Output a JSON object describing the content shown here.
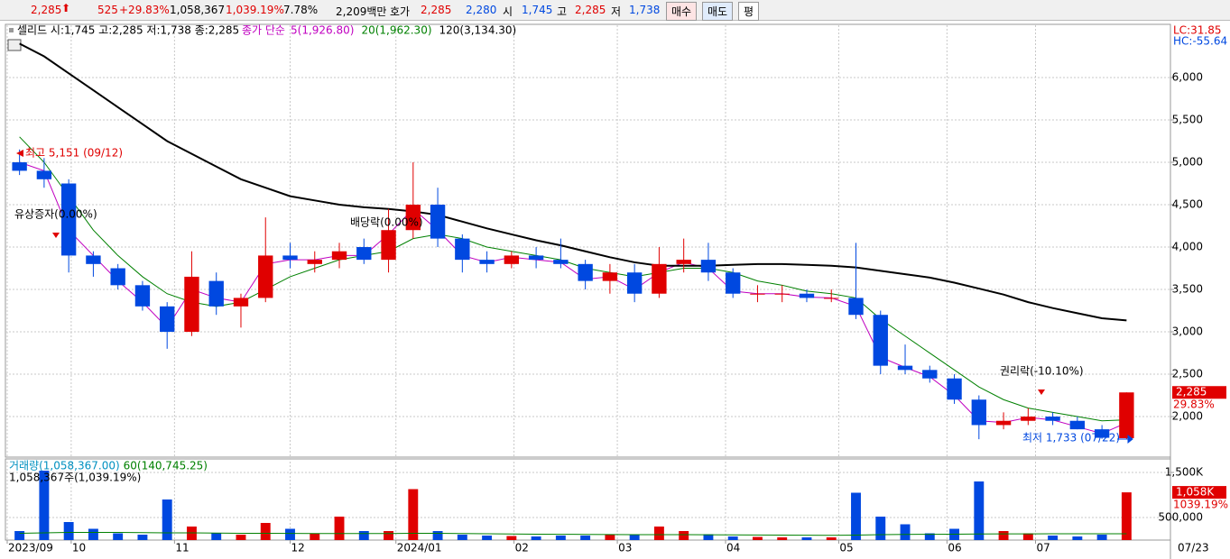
{
  "toolbar": {
    "price": "2,285",
    "change": "525",
    "change_rate": "+29.83%",
    "volume": "1,058,367",
    "volume_rate": "1,039.19%",
    "turnover": "7.78%",
    "amount": "2,209백만",
    "quote_label": "호가",
    "ask": "2,285",
    "bid": "2,280",
    "open_label": "시",
    "open": "1,745",
    "high_label": "고",
    "high": "2,285",
    "low_label": "저",
    "low": "1,738",
    "buttons": [
      "매수",
      "매도",
      "평"
    ]
  },
  "chart_data": [
    {
      "type": "candlestick",
      "title": "셀리드 시:1,745 고:2,285 저:1,738 종:2,285",
      "ma_label": "종가 단순",
      "lc": "LC:31.85",
      "hc": "HC:-55.64",
      "up_color": "#e00000",
      "down_color": "#0048e0",
      "annotations": {
        "high": "최고 5,151 (09/12)",
        "rights1": "유상증자(0.00%)",
        "dividend": "배당락(0.00%)",
        "rights2": "권리락(-10.10%)",
        "low": "최저 1,733 (07/22)"
      },
      "last_price_label": "2,285",
      "last_rate_label": "29.83%",
      "ylim": [
        1543,
        6617
      ],
      "yticks": [
        {
          "value": 2000,
          "label": "2,000"
        },
        {
          "value": 2500,
          "label": "2,500"
        },
        {
          "value": 3000,
          "label": "3,000"
        },
        {
          "value": 3500,
          "label": "3,500"
        },
        {
          "value": 4000,
          "label": "4,000"
        },
        {
          "value": 4500,
          "label": "4,500"
        },
        {
          "value": 5000,
          "label": "5,000"
        },
        {
          "value": 5500,
          "label": "5,500"
        },
        {
          "value": 6000,
          "label": "6,000"
        }
      ],
      "xlim": [
        0,
        46
      ],
      "candles": [
        {
          "open": 5000,
          "high": 5151,
          "low": 4850,
          "close": 4900
        },
        {
          "open": 4900,
          "high": 5050,
          "low": 4700,
          "close": 4800
        },
        {
          "open": 4750,
          "high": 4800,
          "low": 3700,
          "close": 3900
        },
        {
          "open": 3900,
          "high": 3950,
          "low": 3650,
          "close": 3800
        },
        {
          "open": 3750,
          "high": 3800,
          "low": 3500,
          "close": 3550
        },
        {
          "open": 3550,
          "high": 3600,
          "low": 3250,
          "close": 3300
        },
        {
          "open": 3300,
          "high": 3350,
          "low": 2800,
          "close": 3000
        },
        {
          "open": 3000,
          "high": 3950,
          "low": 2950,
          "close": 3650
        },
        {
          "open": 3600,
          "high": 3700,
          "low": 3200,
          "close": 3300
        },
        {
          "open": 3300,
          "high": 3450,
          "low": 3050,
          "close": 3400
        },
        {
          "open": 3400,
          "high": 4350,
          "low": 3350,
          "close": 3900
        },
        {
          "open": 3900,
          "high": 4050,
          "low": 3750,
          "close": 3850
        },
        {
          "open": 3800,
          "high": 3950,
          "low": 3700,
          "close": 3850
        },
        {
          "open": 3850,
          "high": 4050,
          "low": 3750,
          "close": 3950
        },
        {
          "open": 4000,
          "high": 4100,
          "low": 3800,
          "close": 3850
        },
        {
          "open": 3850,
          "high": 4450,
          "low": 3700,
          "close": 4200
        },
        {
          "open": 4200,
          "high": 5000,
          "low": 4100,
          "close": 4500
        },
        {
          "open": 4500,
          "high": 4700,
          "low": 4000,
          "close": 4100
        },
        {
          "open": 4100,
          "high": 4150,
          "low": 3700,
          "close": 3850
        },
        {
          "open": 3850,
          "high": 3950,
          "low": 3700,
          "close": 3800
        },
        {
          "open": 3800,
          "high": 3950,
          "low": 3750,
          "close": 3900
        },
        {
          "open": 3900,
          "high": 4000,
          "low": 3750,
          "close": 3850
        },
        {
          "open": 3850,
          "high": 4100,
          "low": 3750,
          "close": 3800
        },
        {
          "open": 3800,
          "high": 3850,
          "low": 3500,
          "close": 3600
        },
        {
          "open": 3600,
          "high": 3800,
          "low": 3450,
          "close": 3700
        },
        {
          "open": 3700,
          "high": 3800,
          "low": 3350,
          "close": 3450
        },
        {
          "open": 3450,
          "high": 4000,
          "low": 3400,
          "close": 3800
        },
        {
          "open": 3800,
          "high": 4100,
          "low": 3700,
          "close": 3850
        },
        {
          "open": 3850,
          "high": 4050,
          "low": 3600,
          "close": 3700
        },
        {
          "open": 3700,
          "high": 3750,
          "low": 3400,
          "close": 3450
        },
        {
          "open": 3450,
          "high": 3550,
          "low": 3350,
          "close": 3450
        },
        {
          "open": 3450,
          "high": 3550,
          "low": 3350,
          "close": 3450
        },
        {
          "open": 3450,
          "high": 3500,
          "low": 3350,
          "close": 3400
        },
        {
          "open": 3400,
          "high": 3500,
          "low": 3350,
          "close": 3400
        },
        {
          "open": 3400,
          "high": 4050,
          "low": 3150,
          "close": 3200
        },
        {
          "open": 3200,
          "high": 3250,
          "low": 2500,
          "close": 2600
        },
        {
          "open": 2600,
          "high": 2850,
          "low": 2500,
          "close": 2550
        },
        {
          "open": 2550,
          "high": 2600,
          "low": 2400,
          "close": 2450
        },
        {
          "open": 2450,
          "high": 2500,
          "low": 2150,
          "close": 2200
        },
        {
          "open": 2200,
          "high": 2250,
          "low": 1733,
          "close": 1900
        },
        {
          "open": 1900,
          "high": 2050,
          "low": 1850,
          "close": 1950
        },
        {
          "open": 1950,
          "high": 2100,
          "low": 1900,
          "close": 2000
        },
        {
          "open": 2000,
          "high": 2050,
          "low": 1900,
          "close": 1950
        },
        {
          "open": 1950,
          "high": 2000,
          "low": 1850,
          "close": 1850
        },
        {
          "open": 1850,
          "high": 1900,
          "low": 1738,
          "close": 1750
        },
        {
          "open": 1745,
          "high": 2285,
          "low": 1738,
          "close": 2285
        }
      ],
      "series": [
        {
          "name": "5(1,926.80)",
          "color": "#c000c0",
          "values": [
            5000,
            4900,
            4200,
            3900,
            3600,
            3350,
            3050,
            3500,
            3400,
            3350,
            3800,
            3850,
            3850,
            3900,
            3900,
            4150,
            4450,
            4200,
            3900,
            3820,
            3880,
            3850,
            3820,
            3620,
            3650,
            3500,
            3700,
            3820,
            3750,
            3480,
            3450,
            3450,
            3410,
            3400,
            3300,
            2700,
            2580,
            2470,
            2250,
            1950,
            1930,
            1990,
            1960,
            1880,
            1800,
            1927
          ]
        },
        {
          "name": "20(1,962.30)",
          "color": "#008000",
          "values": [
            5300,
            5000,
            4600,
            4200,
            3900,
            3650,
            3450,
            3350,
            3300,
            3350,
            3500,
            3650,
            3750,
            3850,
            3900,
            3950,
            4100,
            4150,
            4100,
            4000,
            3950,
            3900,
            3850,
            3750,
            3700,
            3650,
            3700,
            3750,
            3750,
            3700,
            3600,
            3550,
            3480,
            3450,
            3400,
            3150,
            2950,
            2750,
            2550,
            2350,
            2200,
            2100,
            2050,
            2000,
            1950,
            1962
          ]
        },
        {
          "name": "120(3,134.30)",
          "color": "#000000",
          "values": [
            6400,
            6250,
            6050,
            5850,
            5650,
            5450,
            5250,
            5100,
            4950,
            4800,
            4700,
            4600,
            4550,
            4500,
            4470,
            4450,
            4420,
            4380,
            4300,
            4220,
            4150,
            4080,
            4020,
            3950,
            3880,
            3820,
            3780,
            3780,
            3780,
            3790,
            3800,
            3800,
            3790,
            3780,
            3760,
            3720,
            3680,
            3640,
            3580,
            3510,
            3440,
            3350,
            3280,
            3220,
            3160,
            3134
          ]
        }
      ]
    },
    {
      "type": "bar",
      "subtitle": "1,058,367주(1,039.19%)",
      "last_label": "1,058K",
      "last_rate_label": "1039.19%",
      "end_label": "07/23",
      "ylim": [
        0,
        1780000
      ],
      "yticks": [
        {
          "value": 500000,
          "label": "500,000"
        },
        {
          "value": 1500000,
          "label": "1,500K"
        }
      ],
      "xlim": [
        0,
        46
      ],
      "xticks": [
        {
          "value": 0,
          "label": "2023/09"
        },
        {
          "value": 2.6,
          "label": "10"
        },
        {
          "value": 6.8,
          "label": "11"
        },
        {
          "value": 11.5,
          "label": "12"
        },
        {
          "value": 15.8,
          "label": "2024/01"
        },
        {
          "value": 20.6,
          "label": "02"
        },
        {
          "value": 24.8,
          "label": "03"
        },
        {
          "value": 29.2,
          "label": "04"
        },
        {
          "value": 33.8,
          "label": "05"
        },
        {
          "value": 38.2,
          "label": "06"
        },
        {
          "value": 41.8,
          "label": "07"
        }
      ],
      "series": [
        {
          "name": "거래량(1,058,367.00)",
          "color": "#0090c0",
          "values": [
            200000,
            1540000,
            400000,
            250000,
            150000,
            120000,
            900000,
            300000,
            150000,
            120000,
            380000,
            250000,
            150000,
            520000,
            200000,
            200000,
            1130000,
            200000,
            120000,
            100000,
            90000,
            80000,
            100000,
            100000,
            120000,
            110000,
            300000,
            200000,
            130000,
            80000,
            70000,
            60000,
            60000,
            60000,
            1050000,
            520000,
            350000,
            150000,
            250000,
            1300000,
            200000,
            150000,
            100000,
            80000,
            120000,
            1058367
          ]
        },
        {
          "name": "60(140,745.25)",
          "color": "#008000",
          "values": [
            150000,
            160000,
            170000,
            170000,
            170000,
            165000,
            160000,
            160000,
            155000,
            150000,
            150000,
            148000,
            146000,
            146000,
            145000,
            145000,
            150000,
            150000,
            145000,
            140000,
            135000,
            130000,
            128000,
            125000,
            122000,
            120000,
            120000,
            120000,
            118000,
            115000,
            112000,
            110000,
            108000,
            106000,
            110000,
            120000,
            125000,
            128000,
            130000,
            135000,
            138000,
            138000,
            139000,
            140000,
            140000,
            140745
          ]
        }
      ]
    }
  ]
}
